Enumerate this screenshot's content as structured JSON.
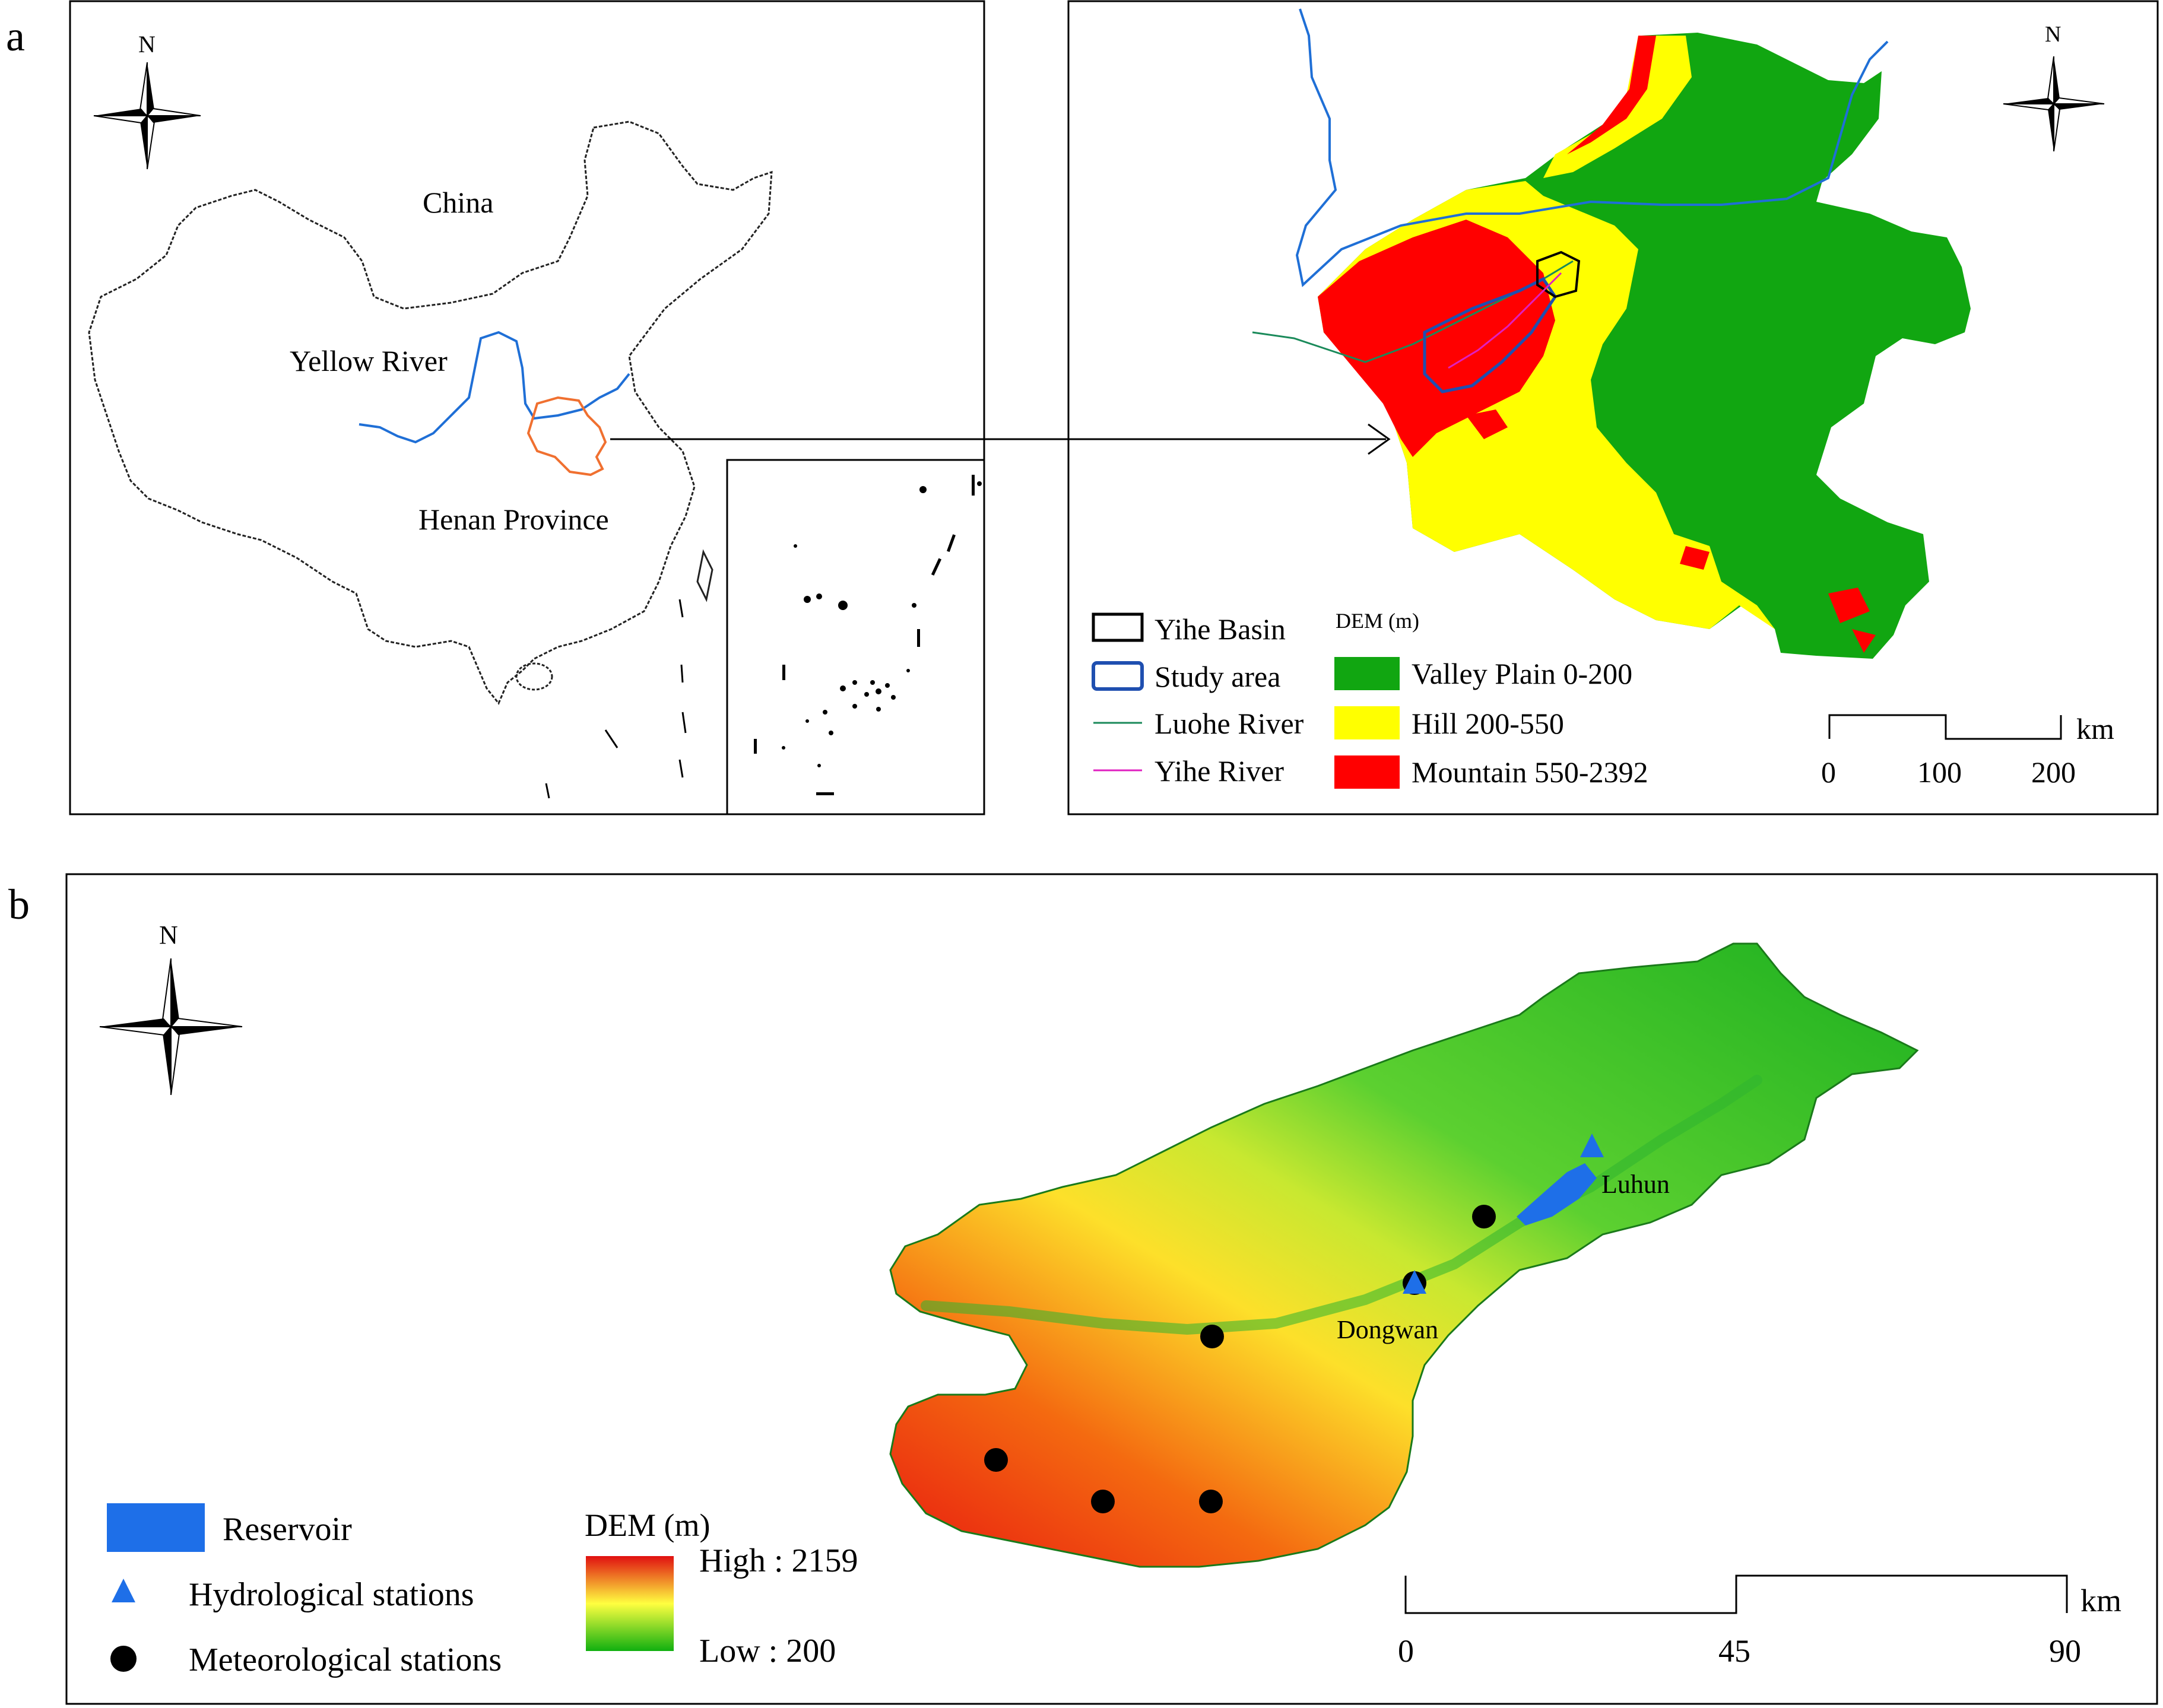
{
  "panels": {
    "a_label": "a",
    "b_label": "b"
  },
  "north_label": "N",
  "map_china": {
    "country_label": "China",
    "river_label": "Yellow River",
    "province_label": "Henan Province",
    "colors": {
      "yellow_river": "#1f6fd6",
      "henan_outline": "#f07030",
      "border": "#222222"
    }
  },
  "map_henan": {
    "legend": {
      "yihe_basin": "Yihe Basin",
      "study_area": "Study area",
      "luohe_river": "Luohe River",
      "yihe_river": "Yihe River",
      "dem_title": "DEM (m)",
      "valley": "Valley Plain  0-200",
      "hill": "Hill 200-550",
      "mountain": "Mountain 550-2392"
    },
    "scale": {
      "unit": "km",
      "ticks": [
        "0",
        "100",
        "200"
      ]
    },
    "colors": {
      "valley": "#11a611",
      "hill": "#ffff00",
      "mountain": "#ff0000",
      "river": "#1f6fd6",
      "luohe": "#1a8a5a",
      "yihe": "#e020c0",
      "study": "#1f4fb0"
    }
  },
  "map_yihe": {
    "legend": {
      "reservoir": "Reservoir",
      "hydro": "Hydrological stations",
      "meteo": "Meteorological stations",
      "dem_title": "DEM (m)",
      "high": "High : 2159",
      "low": "Low : 200"
    },
    "stations": {
      "luhun": "Luhun",
      "dongwan": "Dongwan"
    },
    "scale": {
      "unit": "km",
      "ticks": [
        "0",
        "45",
        "90"
      ]
    },
    "colors": {
      "reservoir": "#1e6fe8",
      "hydro": "#1e6fe8",
      "meteo": "#000000",
      "dem_high": "#e01010",
      "dem_mid": "#ffff40",
      "dem_low": "#10b010"
    }
  }
}
